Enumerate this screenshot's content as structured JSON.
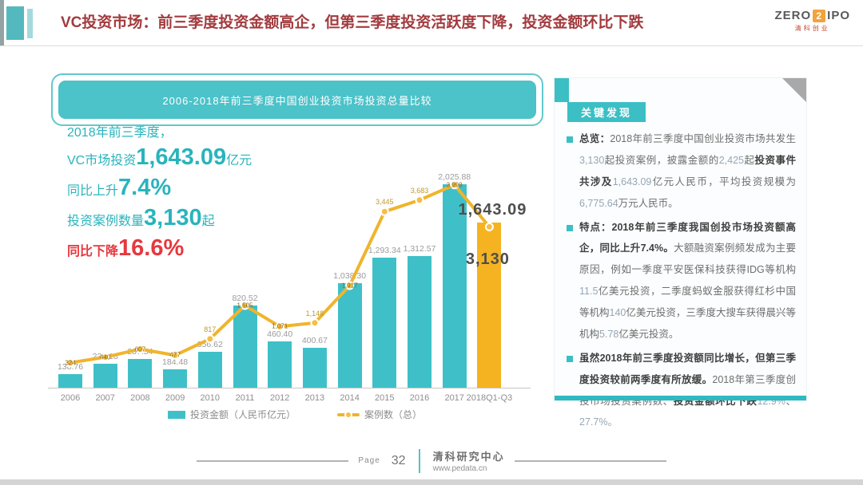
{
  "header": {
    "title": "VC投资市场：前三季度投资金额高企，但第三季度投资活跃度下降，投资金额环比下跌",
    "logo": {
      "zero": "ZERO",
      "two": "2",
      "ipo": "IPO",
      "sub": "清科创业"
    }
  },
  "stats": {
    "lines": [
      {
        "pre": "2018年前三季度，"
      },
      {
        "pre": "VC市场投资",
        "big": "1,643.09",
        "suf": "亿元"
      },
      {
        "pre": "同比上升",
        "big": "7.4%"
      },
      {
        "pre": "投资案例数量",
        "big": "3,130",
        "suf": "起"
      },
      {
        "pre": "同比下降",
        "big": "16.6%",
        "red": true
      }
    ]
  },
  "chart_data": {
    "type": "bar",
    "title": "2006-2018年前三季度中国创业投资市场投资总量比较",
    "categories": [
      "2006",
      "2007",
      "2008",
      "2009",
      "2010",
      "2011",
      "2012",
      "2013",
      "2014",
      "2015",
      "2016",
      "2017",
      "2018Q1-Q3"
    ],
    "series": [
      {
        "name": "投资金额（人民币亿元）",
        "type": "bar",
        "values": [
          138.76,
          237.18,
          287.54,
          184.48,
          356.62,
          820.52,
          460.4,
          400.67,
          1038.3,
          1293.34,
          1312.57,
          2025.88,
          1643.09
        ],
        "labels": [
          "138.76",
          "237.18",
          "287.54",
          "184.48",
          "356.62",
          "820.52",
          "460.40",
          "400.67",
          "1,038.30",
          "1,293.34",
          "1,312.57",
          "2,025.88",
          "1,643.09"
        ]
      },
      {
        "name": "案例数（总）",
        "type": "line",
        "values": [
          324,
          440,
          607,
          477,
          817,
          1505,
          1071,
          1148,
          1917,
          3445,
          3683,
          3998,
          3130
        ],
        "labels": [
          "324",
          "440",
          "607",
          "477",
          "817",
          "1,505",
          "1,071",
          "1,148",
          "1,917",
          "3,445",
          "3,683",
          "3,998",
          "3,130"
        ]
      }
    ],
    "legend": [
      "投资金额（人民币亿元）",
      "案例数（总）"
    ],
    "legend_position": "bottom",
    "y_axis": "hidden",
    "highlight_category": "2018Q1-Q3",
    "highlight_value_label": "1,643.09",
    "highlight_case_label": "3,130",
    "colors": {
      "bar": "#3FC0C8",
      "bar_highlight": "#F5B321",
      "line": "#F0B42C",
      "marker": "#F6BE44"
    }
  },
  "panel": {
    "badge": "关键发现",
    "bullets": [
      {
        "runs": [
          {
            "t": "总览：",
            "b": true
          },
          {
            "t": "2018年前三季度中国创业投资市场共发生"
          },
          {
            "t": "3,130",
            "num": true
          },
          {
            "t": "起投资案例，披露金额的"
          },
          {
            "t": "2,425",
            "num": true
          },
          {
            "t": "起"
          },
          {
            "t": "投资事件共涉及",
            "b": true
          },
          {
            "t": "1,643.09",
            "num": true
          },
          {
            "t": "亿元人民币，平均投资规模为"
          },
          {
            "t": "6,775.64",
            "num": true
          },
          {
            "t": "万元人民币。"
          }
        ]
      },
      {
        "runs": [
          {
            "t": "特点：2018年前三季度我国创投市场投资额高企，同比上升7.4%。",
            "b": true
          },
          {
            "t": "大额融资案例频发成为主要原因，例如一季度平安医保科技获得IDG等机构"
          },
          {
            "t": "11.5",
            "num": true
          },
          {
            "t": "亿美元投资，二季度蚂蚁金服获得红杉中国等机构"
          },
          {
            "t": "140",
            "num": true
          },
          {
            "t": "亿美元投资，三季度大搜车获得晨兴等机构"
          },
          {
            "t": "5.78",
            "num": true
          },
          {
            "t": "亿美元投资。"
          }
        ]
      },
      {
        "runs": [
          {
            "t": "虽然2018年前三季度投资额同比增长，但第三季度投资较前两季度有所放缓。",
            "b": true
          },
          {
            "t": "2018年第三季度创投市场投资案例数、"
          },
          {
            "t": "投资金额环比下跌",
            "b": true
          },
          {
            "t": "12.9%",
            "num": true
          },
          {
            "t": "、"
          },
          {
            "t": "27.7%。",
            "num": true
          }
        ]
      }
    ]
  },
  "footer": {
    "page_label": "Page",
    "page_number": "32",
    "org": "清科研究中心",
    "site": "www.pedata.cn"
  }
}
